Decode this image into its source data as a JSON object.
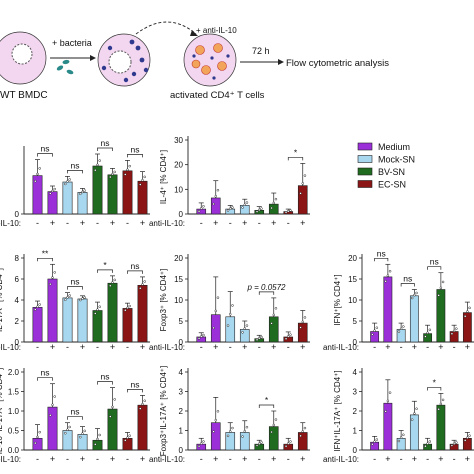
{
  "schematic": {
    "bmdc_label": "WT BMDC",
    "bacteria_label": "+ bacteria",
    "antibody_label": "+ anti-IL-10",
    "tcell_label": "activated CD4⁺ T cells",
    "time_label": "72 h",
    "analysis_label": "Flow cytometric analysis"
  },
  "legend": {
    "entries": [
      {
        "name": "Medium",
        "color": "#9b30d9"
      },
      {
        "name": "Mock-SN",
        "color": "#a8d8f0"
      },
      {
        "name": "BV-SN",
        "color": "#1f6b1f"
      },
      {
        "name": "EC-SN",
        "color": "#8b1414"
      }
    ]
  },
  "colors": {
    "medium": "#9b30d9",
    "mock": "#a8d8f0",
    "bv": "#1f6b1f",
    "ec": "#8b1414",
    "axis": "#222222"
  },
  "condition_row": {
    "axis_label": "anti-IL-10:",
    "signs": [
      "-",
      "+",
      "-",
      "+",
      "-",
      "+",
      "-",
      "+"
    ]
  },
  "chart_data": [
    {
      "id": "r1c1",
      "type": "bar",
      "ylabel": "",
      "yticks": [
        "0"
      ],
      "ylim": [
        0,
        8
      ],
      "values": [
        4.8,
        2.8,
        4.0,
        2.7,
        6.0,
        4.9,
        5.4,
        4.1
      ],
      "errors": [
        2.0,
        0.7,
        0.7,
        0.5,
        1.5,
        0.8,
        1.3,
        1.2
      ],
      "brackets": [
        {
          "from": 0,
          "to": 1,
          "label": "ns"
        },
        {
          "from": 2,
          "to": 3,
          "label": "ns"
        },
        {
          "from": 4,
          "to": 5,
          "label": "ns"
        },
        {
          "from": 6,
          "to": 7,
          "label": "ns"
        }
      ]
    },
    {
      "id": "r1c2",
      "type": "bar",
      "ylabel": "IL-4⁺ [% CD4⁺]",
      "yticks": [
        "0",
        "10",
        "20",
        "30"
      ],
      "ylim": [
        0,
        30
      ],
      "values": [
        2.0,
        6.5,
        2.0,
        3.5,
        1.5,
        4.0,
        1.0,
        11.5
      ],
      "errors": [
        2.5,
        7.0,
        1.5,
        2.5,
        1.5,
        4.5,
        1.0,
        9.0
      ],
      "brackets": [
        {
          "from": 6,
          "to": 7,
          "label": "*"
        }
      ]
    },
    {
      "id": "r2c1",
      "type": "bar",
      "ylabel": "IL-17A⁺ [% CD4⁺]",
      "yticks": [
        "0",
        "2",
        "4",
        "6",
        "8"
      ],
      "ylim": [
        0,
        8
      ],
      "values": [
        3.3,
        6.0,
        4.2,
        4.1,
        3.0,
        5.6,
        3.2,
        5.4
      ],
      "errors": [
        0.6,
        1.4,
        0.5,
        0.3,
        0.8,
        0.7,
        0.5,
        0.8
      ],
      "brackets": [
        {
          "from": 0,
          "to": 1,
          "label": "**"
        },
        {
          "from": 2,
          "to": 3,
          "label": "ns"
        },
        {
          "from": 4,
          "to": 5,
          "label": "*"
        },
        {
          "from": 6,
          "to": 7,
          "label": "ns"
        }
      ]
    },
    {
      "id": "r2c2",
      "type": "bar",
      "ylabel": "Foxp3⁺ [% CD4⁺]",
      "yticks": [
        "0",
        "5",
        "10",
        "15",
        "20"
      ],
      "ylim": [
        0,
        20
      ],
      "values": [
        1.2,
        6.5,
        6.0,
        3.0,
        0.8,
        6.0,
        1.2,
        4.5
      ],
      "errors": [
        1.0,
        9.0,
        6.0,
        2.0,
        0.8,
        4.5,
        1.2,
        3.0
      ],
      "brackets": [
        {
          "from": 4,
          "to": 5,
          "label": "p = 0.0572"
        }
      ]
    },
    {
      "id": "r2c3",
      "type": "bar",
      "ylabel": "IFN⁺[% CD4⁺]",
      "yticks": [
        "0",
        "5",
        "10",
        "15",
        "20"
      ],
      "ylim": [
        0,
        20
      ],
      "values": [
        2.5,
        15.5,
        3.0,
        11.0,
        2.0,
        12.5,
        2.5,
        7.0
      ],
      "errors": [
        2.0,
        3.0,
        1.5,
        1.5,
        2.0,
        4.0,
        1.5,
        2.5
      ],
      "brackets": [
        {
          "from": 0,
          "to": 1,
          "label": "ns"
        },
        {
          "from": 2,
          "to": 3,
          "label": "ns"
        },
        {
          "from": 4,
          "to": 5,
          "label": "ns"
        }
      ]
    },
    {
      "id": "r3c1",
      "type": "bar",
      "ylabel": "IL-10⁺IL-17A⁺ [% CD4⁺]",
      "yticks": [
        "0.0",
        "0.5",
        "1.0",
        "1.5",
        "2.0"
      ],
      "ylim": [
        0,
        2
      ],
      "values": [
        0.3,
        1.1,
        0.5,
        0.4,
        0.25,
        1.05,
        0.3,
        1.15
      ],
      "errors": [
        0.35,
        0.6,
        0.2,
        0.2,
        0.3,
        0.55,
        0.15,
        0.25
      ],
      "brackets": [
        {
          "from": 0,
          "to": 1,
          "label": "ns"
        },
        {
          "from": 2,
          "to": 3,
          "label": "ns"
        },
        {
          "from": 4,
          "to": 5,
          "label": "ns"
        },
        {
          "from": 6,
          "to": 7,
          "label": "ns"
        }
      ]
    },
    {
      "id": "r3c2",
      "type": "bar",
      "ylabel": "Foxp3⁺IL-17A⁺ [% CD4⁺]",
      "yticks": [
        "0",
        "1",
        "2",
        "3",
        "4"
      ],
      "ylim": [
        0,
        4
      ],
      "values": [
        0.3,
        1.4,
        0.9,
        0.9,
        0.3,
        1.2,
        0.3,
        0.9
      ],
      "errors": [
        0.3,
        1.3,
        0.5,
        0.6,
        0.2,
        0.8,
        0.3,
        0.5
      ],
      "brackets": [
        {
          "from": 4,
          "to": 5,
          "label": "*"
        }
      ]
    },
    {
      "id": "r3c3",
      "type": "bar",
      "ylabel": "IFN⁺IL-17A⁺ [% CD4⁺]",
      "yticks": [
        "0",
        "1",
        "2",
        "3",
        "4"
      ],
      "ylim": [
        0,
        4
      ],
      "values": [
        0.4,
        2.4,
        0.6,
        1.8,
        0.3,
        2.3,
        0.3,
        0.6
      ],
      "errors": [
        0.3,
        1.2,
        0.4,
        0.7,
        0.3,
        0.6,
        0.2,
        0.3
      ],
      "brackets": [
        {
          "from": 4,
          "to": 5,
          "label": "*"
        }
      ]
    }
  ]
}
